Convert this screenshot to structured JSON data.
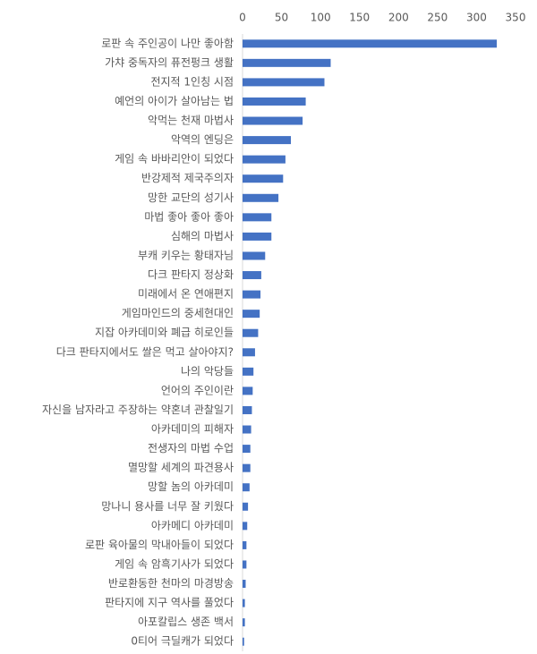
{
  "chart_data": {
    "type": "bar",
    "orientation": "horizontal",
    "color": "#4472c4",
    "categories": [
      "로판 속 주인공이 나만 좋아함",
      "가챠 중독자의 퓨전펑크 생활",
      "전지적 1인칭 시점",
      "예언의 아이가 살아남는 법",
      "악먹는 천재 마법사",
      "악역의 엔딩은",
      "게임 속 바바리안이 되었다",
      "반강제적 제국주의자",
      "망한 교단의 성기사",
      "마법 좋아 좋아 좋아",
      "심해의 마법사",
      "부캐 키우는 황태자님",
      "다크 판타지 정상화",
      "미래에서 온 연애편지",
      "게임마인드의 중세현대인",
      "지잡 아카데미와 폐급 히로인들",
      "다크 판타지에서도 쌀은 먹고 살아야지?",
      "나의 악당들",
      "언어의 주인이란",
      "자신을 남자라고 주장하는 약혼녀 관찰일기",
      "아카데미의 피해자",
      "전생자의 마법 수업",
      "멸망할 세계의 파견용사",
      "망할 놈의 아카데미",
      "망나니 용사를 너무 잘 키웠다",
      "아카메디 아카데미",
      "로판 육아물의 막내아들이 되었다",
      "게임 속 암흑기사가 되었다",
      "반로환동한 천마의 마경방송",
      "판타지에 지구 역사를 풀었다",
      "아포칼립스 생존 백서",
      "0티어 극딜캐가 되었다"
    ],
    "values": [
      326,
      113,
      105,
      81,
      77,
      62,
      55,
      52,
      46,
      37,
      37,
      29,
      24,
      23,
      22,
      20,
      16,
      14,
      13,
      12,
      11,
      10,
      10,
      9,
      7,
      6,
      5,
      5,
      4,
      3,
      3,
      2
    ],
    "xlim": [
      0,
      350
    ],
    "xticks": [
      0,
      50,
      100,
      150,
      200,
      250,
      300,
      350
    ]
  }
}
